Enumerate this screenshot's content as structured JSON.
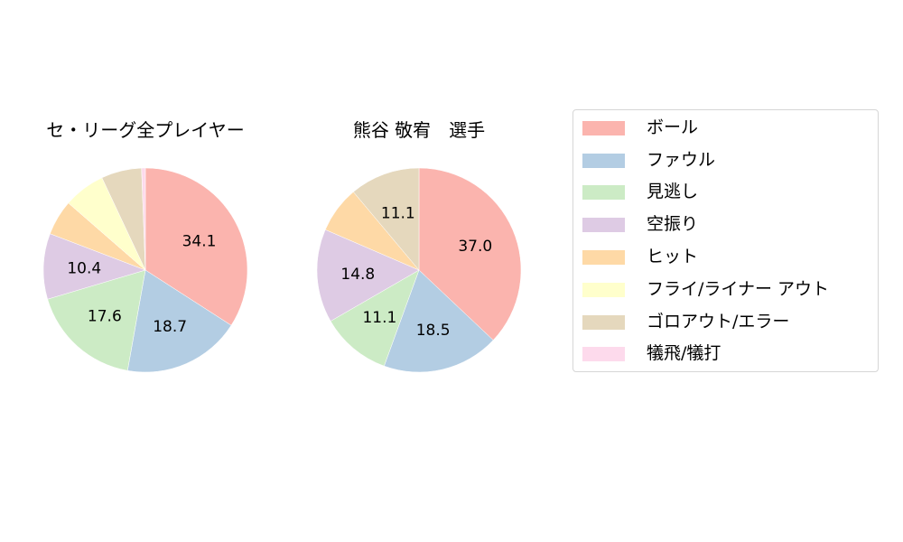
{
  "chart_data": [
    {
      "type": "pie",
      "title": "セ・リーグ全プレイヤー",
      "categories": [
        "ボール",
        "ファウル",
        "見逃し",
        "空振り",
        "ヒット",
        "フライ/ライナー アウト",
        "ゴロアウト/エラー",
        "犠飛/犠打"
      ],
      "values": [
        34.1,
        18.7,
        17.6,
        10.4,
        5.6,
        6.6,
        6.4,
        0.6
      ],
      "labels_shown": [
        "34.1",
        "18.7",
        "17.6",
        "10.4",
        "",
        "",
        "",
        ""
      ],
      "start_angle": 90,
      "direction": "clockwise"
    },
    {
      "type": "pie",
      "title": "熊谷 敬宥　選手",
      "categories": [
        "ボール",
        "ファウル",
        "見逃し",
        "空振り",
        "ヒット",
        "フライ/ライナー アウト",
        "ゴロアウト/エラー",
        "犠飛/犠打"
      ],
      "values": [
        37.0,
        18.5,
        11.1,
        14.8,
        7.4,
        0,
        11.1,
        0
      ],
      "labels_shown": [
        "37.0",
        "18.5",
        "11.1",
        "14.8",
        "",
        "",
        "11.1",
        ""
      ],
      "start_angle": 90,
      "direction": "clockwise"
    }
  ],
  "colors": [
    "#fbb4ae",
    "#b3cde3",
    "#ccebc5",
    "#decbe4",
    "#fed9a6",
    "#ffffcc",
    "#e5d8bd",
    "#fddaec"
  ],
  "legend": {
    "position": "right",
    "items": [
      "ボール",
      "ファウル",
      "見逃し",
      "空振り",
      "ヒット",
      "フライ/ライナー アウト",
      "ゴロアウト/エラー",
      "犠飛/犠打"
    ]
  },
  "titles": {
    "left": "セ・リーグ全プレイヤー",
    "right": "熊谷 敬宥　選手"
  }
}
